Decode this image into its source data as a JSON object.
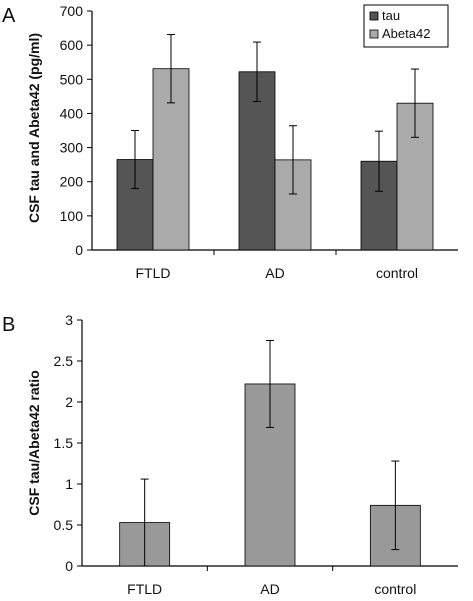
{
  "chart_data": [
    {
      "panel": "A",
      "type": "bar",
      "ylabel": "CSF tau and Abeta42 (pg/ml)",
      "ylim": [
        0,
        700
      ],
      "yticks": [
        0,
        100,
        200,
        300,
        400,
        500,
        600,
        700
      ],
      "categories": [
        "FTLD",
        "AD",
        "control"
      ],
      "legend_position": "top-right",
      "series": [
        {
          "name": "tau",
          "color": "#555555",
          "values": [
            265,
            522,
            260
          ],
          "errors": [
            85,
            87,
            88
          ]
        },
        {
          "name": "Abeta42",
          "color": "#aaaaaa",
          "values": [
            531,
            264,
            430
          ],
          "errors": [
            100,
            100,
            100
          ]
        }
      ]
    },
    {
      "panel": "B",
      "type": "bar",
      "ylabel": "CSF tau/Abeta42 ratio",
      "ylim": [
        0,
        3
      ],
      "yticks": [
        "0",
        "0.5",
        "1",
        "1.5",
        "2",
        "2.5",
        "3"
      ],
      "categories": [
        "FTLD",
        "AD",
        "control"
      ],
      "series": [
        {
          "color": "#999999",
          "values": [
            0.53,
            2.22,
            0.74
          ],
          "errors": [
            0.53,
            0.53,
            0.54
          ]
        }
      ]
    }
  ]
}
